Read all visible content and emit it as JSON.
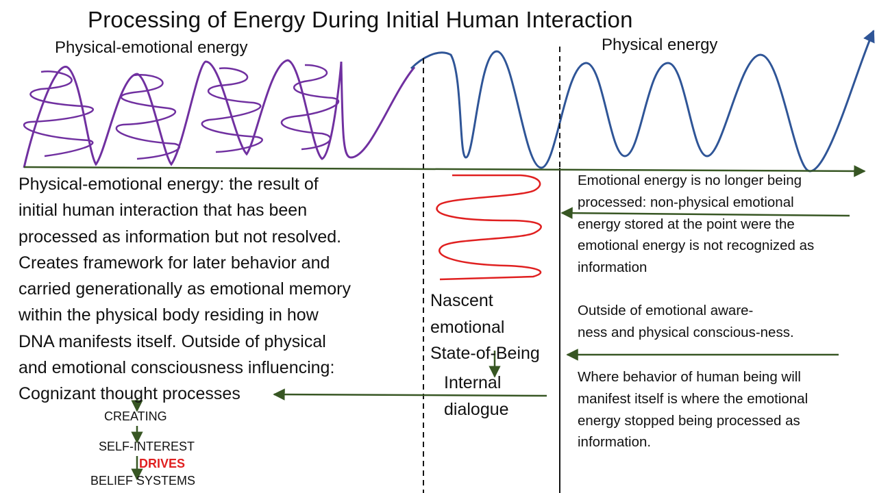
{
  "title": "Processing of Energy During Initial Human Interaction",
  "labels": {
    "physical_emotional_energy": "Physical-emotional energy",
    "physical_energy": "Physical energy"
  },
  "left_text": "Physical-emotional energy: the result of\ninitial human interaction that has been\nprocessed as information but not resolved.\nCreates framework for later behavior and\ncarried generationally as emotional memory\nwithin the physical body residing in how\nDNA manifests itself.  Outside of physical\nand emotional consciousness influencing:\nCognizant thought processes",
  "right_text": {
    "block1": "Emotional energy is no longer being\nprocessed: non-physical emotional\nenergy stored at the point were the\nemotional energy is not recognized as\ninformation",
    "block2": "Outside of emotional aware-\nness and physical conscious-ness.",
    "block3": "Where behavior of human being will\nmanifest itself is where the emotional\nenergy stopped being processed as\ninformation."
  },
  "middle": {
    "nascent": "Nascent\nemotional\nState-of-Being",
    "internal": "Internal\ndialogue"
  },
  "chain": {
    "creating": "CREATING",
    "self_interest": "SELF-INTEREST",
    "drives": "DRIVES",
    "belief": "BELIEF SYSTEMS"
  },
  "colors": {
    "purple_wave": "#7030a0",
    "blue_wave": "#2f5597",
    "red_wave": "#e02020",
    "green_arrows": "#375623",
    "drives_text": "#e02020"
  }
}
